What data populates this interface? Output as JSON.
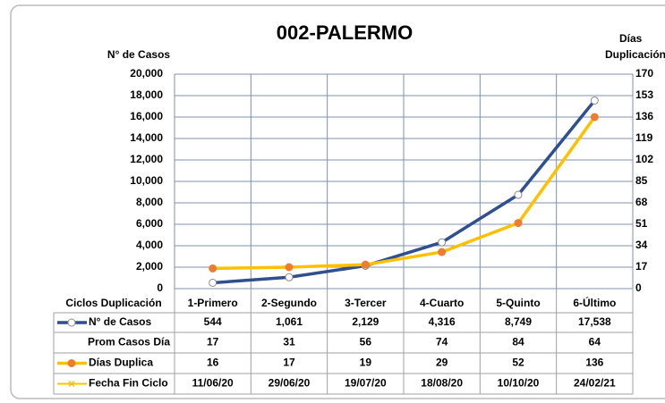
{
  "chart_data": {
    "type": "line",
    "title": "002-PALERMO",
    "y_label": "N° de Casos",
    "y2_label": [
      "Días",
      "Duplicación"
    ],
    "categories": [
      "1-Primero",
      "2-Segundo",
      "3-Tercer",
      "4-Cuarto",
      "5-Quinto",
      "6-Último"
    ],
    "series": [
      {
        "name": "N° de Casos",
        "color": "#2f4f8f",
        "marker_color": "#ffffff",
        "values": [
          544,
          1061,
          2129,
          4316,
          8749,
          17538
        ],
        "value_labels": [
          "544",
          "1,061",
          "2,129",
          "4,316",
          "8,749",
          "17,538"
        ]
      },
      {
        "name": "Días Duplica",
        "color": "#ffc000",
        "marker_color": "#ed7d31",
        "axis": "y2",
        "values": [
          16,
          17,
          19,
          29,
          52,
          136
        ]
      }
    ],
    "table_header": "Ciclos Duplicación",
    "extra_rows": [
      {
        "name": "Prom Casos Día",
        "values": [
          17,
          31,
          56,
          74,
          84,
          64
        ]
      },
      {
        "name": "Fecha Fin Ciclo",
        "color": "#ffc000",
        "values": [
          "11/06/20",
          "29/06/20",
          "19/07/20",
          "18/08/20",
          "10/10/20",
          "24/02/21"
        ]
      }
    ],
    "ylim": [
      0,
      20000
    ],
    "yticks": [
      0,
      {
        "value": 2000,
        "label": "2,000"
      },
      {
        "value": 4000,
        "label": "4,000"
      },
      {
        "value": 6000,
        "label": "6,000"
      },
      {
        "value": 8000,
        "label": "8,000"
      },
      {
        "value": 10000,
        "label": "10,000"
      },
      {
        "value": 12000,
        "label": "12,000"
      },
      {
        "value": 14000,
        "label": "14,000"
      },
      {
        "value": 16000,
        "label": "16,000"
      },
      {
        "value": 18000,
        "label": "18,000"
      },
      {
        "value": 20000,
        "label": "20,000"
      }
    ],
    "y2lim": [
      0,
      170
    ],
    "y2ticks": [
      0,
      17,
      34,
      51,
      68,
      85,
      102,
      119,
      136,
      153,
      170
    ],
    "grid": true
  }
}
